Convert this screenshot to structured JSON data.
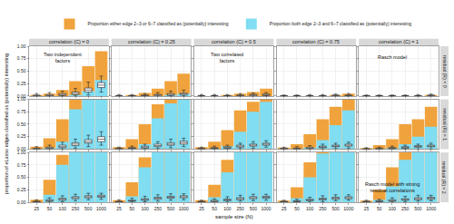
{
  "chart_data": {
    "type": "bar",
    "x_label": "sample size (N)",
    "y_label": "proportion of eLasso edges classified as (potentially) interesting",
    "categories": [
      "25",
      "50",
      "100",
      "250",
      "500",
      "1000"
    ],
    "col_labels": [
      "correlation (C) = 0",
      "correlation (C) = 0.25",
      "correlation (C) = 0.5",
      "correlation (C) = 0.75",
      "correlation (C) = 1"
    ],
    "row_labels": [
      "residual (R) = 0",
      "residual (R) = 1",
      "residual (R) = 2"
    ],
    "ylim": [
      0,
      1
    ],
    "yticks": [
      {
        "value": 0,
        "label": "0.00"
      },
      {
        "value": 0.25,
        "label": "0.25"
      },
      {
        "value": 0.5,
        "label": "0.50"
      },
      {
        "value": 0.75,
        "label": "0.75"
      },
      {
        "value": 1,
        "label": "1.00"
      }
    ],
    "grid": true,
    "stacked": false,
    "legend": "top",
    "series": [
      {
        "name": "Proportion either edge 2–3 or 6–7 classified as (potentially) interesting",
        "color": "#F0A33C"
      },
      {
        "name": "Proportion both edge 2–3 and 6–7 classified as (potentially) interesting",
        "color": "#80DDF2"
      }
    ],
    "panels": [
      [
        {
          "values": [
            [
              0.02,
              0.05,
              0.12,
              0.3,
              0.6,
              0.9
            ],
            [
              0,
              0,
              0,
              0.02,
              0.1,
              0.32
            ]
          ],
          "box": {
            "lower": [
              0,
              0,
              0,
              0,
              0.02,
              0.08
            ],
            "q1": [
              0,
              0,
              0.01,
              0.03,
              0.08,
              0.17
            ],
            "median": [
              0,
              0.01,
              0.03,
              0.05,
              0.12,
              0.22
            ],
            "q3": [
              0.02,
              0.03,
              0.05,
              0.08,
              0.16,
              0.27
            ],
            "upper": [
              0.05,
              0.07,
              0.1,
              0.15,
              0.28,
              0.4
            ]
          },
          "note": [
            "Two independent",
            "factors"
          ]
        },
        {
          "values": [
            [
              0,
              0.02,
              0.06,
              0.15,
              0.3,
              0.45
            ],
            [
              0,
              0,
              0,
              0,
              0.02,
              0.05
            ]
          ],
          "box": {
            "lower": [
              0,
              0,
              0,
              0,
              0,
              0
            ],
            "q1": [
              0,
              0,
              0,
              0,
              0.01,
              0.02
            ],
            "median": [
              0,
              0,
              0.01,
              0.02,
              0.03,
              0.04
            ],
            "q3": [
              0.01,
              0.01,
              0.02,
              0.03,
              0.05,
              0.06
            ],
            "upper": [
              0.03,
              0.03,
              0.05,
              0.07,
              0.1,
              0.12
            ]
          }
        },
        {
          "values": [
            [
              0,
              0,
              0.02,
              0.05,
              0.08,
              0.15
            ],
            [
              0,
              0,
              0,
              0,
              0,
              0
            ]
          ],
          "box": {
            "lower": [
              0,
              0,
              0,
              0,
              0,
              0
            ],
            "q1": [
              0,
              0,
              0,
              0,
              0,
              0.01
            ],
            "median": [
              0,
              0,
              0,
              0.01,
              0.02,
              0.02
            ],
            "q3": [
              0.01,
              0.01,
              0.01,
              0.02,
              0.03,
              0.04
            ],
            "upper": [
              0.03,
              0.03,
              0.03,
              0.05,
              0.06,
              0.07
            ]
          },
          "note": [
            "Two correlated",
            "factors"
          ]
        },
        {
          "values": [
            [
              0,
              0,
              0,
              0,
              0.02,
              0.05
            ],
            [
              0,
              0,
              0,
              0,
              0,
              0
            ]
          ],
          "box": {
            "lower": [
              0,
              0,
              0,
              0,
              0,
              0
            ],
            "q1": [
              0,
              0,
              0,
              0,
              0,
              0
            ],
            "median": [
              0,
              0,
              0,
              0,
              0.01,
              0.01
            ],
            "q3": [
              0.01,
              0.01,
              0.01,
              0.01,
              0.02,
              0.02
            ],
            "upper": [
              0.02,
              0.02,
              0.03,
              0.03,
              0.04,
              0.05
            ]
          }
        },
        {
          "values": [
            [
              0,
              0,
              0,
              0,
              0,
              0.02
            ],
            [
              0,
              0,
              0,
              0,
              0,
              0
            ]
          ],
          "box": {
            "lower": [
              0,
              0,
              0,
              0,
              0,
              0
            ],
            "q1": [
              0,
              0,
              0,
              0,
              0,
              0
            ],
            "median": [
              0,
              0,
              0,
              0,
              0,
              0.01
            ],
            "q3": [
              0.01,
              0.01,
              0.01,
              0.01,
              0.01,
              0.02
            ],
            "upper": [
              0.02,
              0.02,
              0.02,
              0.02,
              0.03,
              0.04
            ]
          },
          "note": [
            "Rasch model"
          ]
        }
      ],
      [
        {
          "values": [
            [
              0.05,
              0.22,
              0.6,
              1,
              1,
              1
            ],
            [
              0,
              0.02,
              0.15,
              0.8,
              1,
              1
            ]
          ],
          "box": {
            "lower": [
              0,
              0,
              0,
              0.02,
              0.05,
              0.08
            ],
            "q1": [
              0,
              0.01,
              0.03,
              0.07,
              0.12,
              0.15
            ],
            "median": [
              0.01,
              0.02,
              0.05,
              0.1,
              0.15,
              0.2
            ],
            "q3": [
              0.02,
              0.04,
              0.08,
              0.13,
              0.19,
              0.25
            ],
            "upper": [
              0.05,
              0.08,
              0.14,
              0.2,
              0.28,
              0.35
            ]
          }
        },
        {
          "values": [
            [
              0.04,
              0.2,
              0.5,
              0.9,
              1,
              1
            ],
            [
              0,
              0.01,
              0.1,
              0.62,
              0.92,
              1
            ]
          ],
          "box": {
            "lower": [
              0,
              0,
              0,
              0.01,
              0.03,
              0.05
            ],
            "q1": [
              0,
              0.01,
              0.02,
              0.05,
              0.08,
              0.1
            ],
            "median": [
              0.01,
              0.02,
              0.04,
              0.07,
              0.1,
              0.13
            ],
            "q3": [
              0.02,
              0.03,
              0.06,
              0.1,
              0.13,
              0.16
            ],
            "upper": [
              0.04,
              0.06,
              0.1,
              0.15,
              0.2,
              0.22
            ]
          }
        },
        {
          "values": [
            [
              0.04,
              0.15,
              0.38,
              0.78,
              0.95,
              1
            ],
            [
              0,
              0.01,
              0.06,
              0.35,
              0.75,
              0.95
            ]
          ],
          "box": {
            "lower": [
              0,
              0,
              0,
              0.01,
              0.02,
              0.04
            ],
            "q1": [
              0,
              0.01,
              0.02,
              0.04,
              0.06,
              0.08
            ],
            "median": [
              0.01,
              0.02,
              0.03,
              0.06,
              0.08,
              0.1
            ],
            "q3": [
              0.02,
              0.03,
              0.05,
              0.08,
              0.1,
              0.12
            ],
            "upper": [
              0.04,
              0.06,
              0.08,
              0.12,
              0.15,
              0.17
            ]
          }
        },
        {
          "values": [
            [
              0.03,
              0.1,
              0.3,
              0.6,
              0.85,
              1
            ],
            [
              0,
              0,
              0.03,
              0.18,
              0.48,
              0.78
            ]
          ],
          "box": {
            "lower": [
              0,
              0,
              0,
              0,
              0.01,
              0.02
            ],
            "q1": [
              0,
              0,
              0.01,
              0.03,
              0.05,
              0.06
            ],
            "median": [
              0.01,
              0.01,
              0.02,
              0.04,
              0.06,
              0.08
            ],
            "q3": [
              0.02,
              0.02,
              0.04,
              0.06,
              0.08,
              0.1
            ],
            "upper": [
              0.04,
              0.05,
              0.07,
              0.1,
              0.12,
              0.14
            ]
          }
        },
        {
          "values": [
            [
              0.02,
              0.08,
              0.2,
              0.5,
              0.6,
              0.85
            ],
            [
              0,
              0,
              0.02,
              0.1,
              0.25,
              0.45
            ]
          ],
          "box": {
            "lower": [
              0,
              0,
              0,
              0,
              0,
              0
            ],
            "q1": [
              0,
              0,
              0.01,
              0.02,
              0.04,
              0.05
            ],
            "median": [
              0,
              0.01,
              0.02,
              0.03,
              0.05,
              0.06
            ],
            "q3": [
              0.01,
              0.02,
              0.03,
              0.05,
              0.07,
              0.08
            ],
            "upper": [
              0.03,
              0.04,
              0.06,
              0.08,
              0.1,
              0.12
            ]
          }
        }
      ],
      [
        {
          "values": [
            [
              0.05,
              0.45,
              0.95,
              1,
              1,
              1
            ],
            [
              0,
              0.15,
              0.75,
              1,
              1,
              1
            ]
          ],
          "box": {
            "lower": [
              0,
              0,
              0.01,
              0.03,
              0.05,
              0.06
            ],
            "q1": [
              0,
              0.02,
              0.04,
              0.07,
              0.09,
              0.1
            ],
            "median": [
              0.01,
              0.03,
              0.06,
              0.09,
              0.11,
              0.12
            ],
            "q3": [
              0.02,
              0.05,
              0.08,
              0.11,
              0.13,
              0.14
            ],
            "upper": [
              0.05,
              0.09,
              0.13,
              0.16,
              0.18,
              0.18
            ]
          }
        },
        {
          "values": [
            [
              0.04,
              0.4,
              0.9,
              1,
              1,
              1
            ],
            [
              0,
              0.12,
              0.7,
              1,
              1,
              1
            ]
          ],
          "box": {
            "lower": [
              0,
              0,
              0.01,
              0.02,
              0.04,
              0.05
            ],
            "q1": [
              0,
              0.02,
              0.04,
              0.06,
              0.08,
              0.09
            ],
            "median": [
              0.01,
              0.03,
              0.05,
              0.08,
              0.1,
              0.11
            ],
            "q3": [
              0.02,
              0.04,
              0.07,
              0.1,
              0.12,
              0.13
            ],
            "upper": [
              0.05,
              0.08,
              0.12,
              0.15,
              0.17,
              0.17
            ]
          }
        },
        {
          "values": [
            [
              0.04,
              0.35,
              0.85,
              1,
              1,
              1
            ],
            [
              0,
              0.1,
              0.6,
              1,
              1,
              1
            ]
          ],
          "box": {
            "lower": [
              0,
              0,
              0,
              0.02,
              0.03,
              0.04
            ],
            "q1": [
              0,
              0.01,
              0.03,
              0.05,
              0.07,
              0.08
            ],
            "median": [
              0.01,
              0.02,
              0.05,
              0.07,
              0.09,
              0.1
            ],
            "q3": [
              0.02,
              0.04,
              0.06,
              0.09,
              0.11,
              0.12
            ],
            "upper": [
              0.04,
              0.07,
              0.11,
              0.14,
              0.16,
              0.16
            ]
          }
        },
        {
          "values": [
            [
              0.03,
              0.3,
              0.8,
              1,
              1,
              1
            ],
            [
              0,
              0.08,
              0.5,
              0.98,
              1,
              1
            ]
          ],
          "box": {
            "lower": [
              0,
              0,
              0,
              0.01,
              0.03,
              0.04
            ],
            "q1": [
              0,
              0.01,
              0.03,
              0.05,
              0.06,
              0.07
            ],
            "median": [
              0.01,
              0.02,
              0.04,
              0.06,
              0.08,
              0.09
            ],
            "q3": [
              0.02,
              0.03,
              0.06,
              0.08,
              0.1,
              0.11
            ],
            "upper": [
              0.04,
              0.06,
              0.1,
              0.13,
              0.15,
              0.15
            ]
          }
        },
        {
          "values": [
            [
              0.03,
              0.25,
              0.7,
              1,
              1,
              1
            ],
            [
              0,
              0.05,
              0.32,
              0.85,
              1,
              1
            ]
          ],
          "box": {
            "lower": [
              0,
              0,
              0,
              0.01,
              0.02,
              0.03
            ],
            "q1": [
              0,
              0.01,
              0.02,
              0.04,
              0.05,
              0.06
            ],
            "median": [
              0.01,
              0.02,
              0.03,
              0.05,
              0.07,
              0.08
            ],
            "q3": [
              0.02,
              0.03,
              0.05,
              0.07,
              0.09,
              0.1
            ],
            "upper": [
              0.04,
              0.06,
              0.09,
              0.12,
              0.14,
              0.14
            ]
          },
          "note": [
            "Rasch model with strong",
            "residual correlations"
          ]
        }
      ]
    ]
  }
}
